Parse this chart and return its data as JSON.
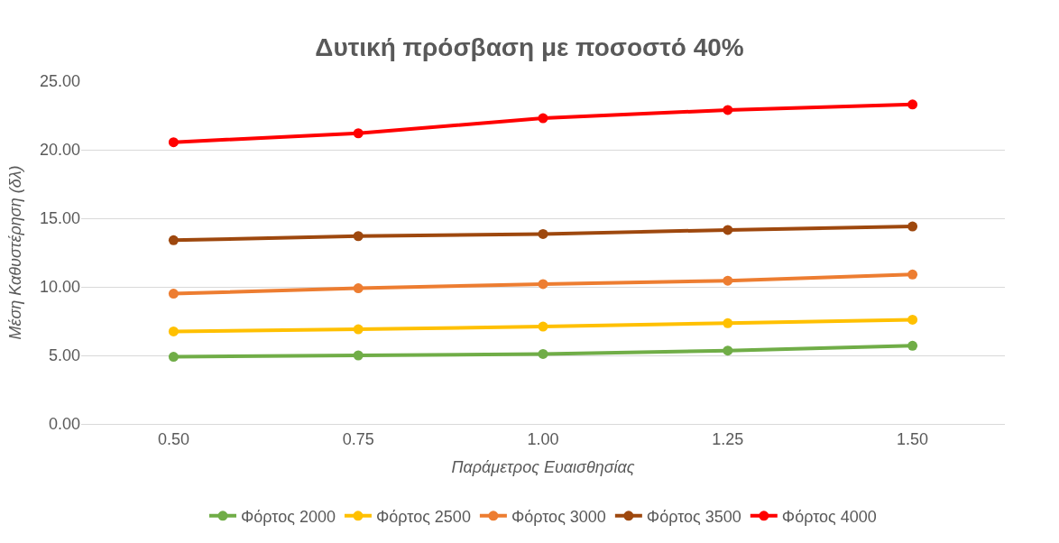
{
  "chart_data": {
    "type": "line",
    "title": "Δυτική πρόσβαση με ποσοστό 40%",
    "xlabel": "Παράμετρος Ευαισθησίας",
    "ylabel": "Μέση Καθυστέρηση (δλ)",
    "categories": [
      "0.50",
      "0.75",
      "1.00",
      "1.25",
      "1.50"
    ],
    "series": [
      {
        "name": "Φόρτος 2000",
        "color": "#70ad47",
        "values": [
          4.9,
          5.0,
          5.1,
          5.35,
          5.7
        ]
      },
      {
        "name": "Φόρτος 2500",
        "color": "#ffc000",
        "values": [
          6.75,
          6.9,
          7.1,
          7.35,
          7.6
        ]
      },
      {
        "name": "Φόρτος 3000",
        "color": "#ed7d31",
        "values": [
          9.5,
          9.9,
          10.2,
          10.45,
          10.9
        ]
      },
      {
        "name": "Φόρτος 3500",
        "color": "#9e480e",
        "values": [
          13.4,
          13.7,
          13.85,
          14.15,
          14.4
        ]
      },
      {
        "name": "Φόρτος 4000",
        "color": "#ff0000",
        "values": [
          20.55,
          21.2,
          22.3,
          22.9,
          23.3
        ]
      }
    ],
    "ylim": [
      0,
      25
    ],
    "yticks": [
      {
        "value": 0,
        "label": "0.00"
      },
      {
        "value": 5,
        "label": "5.00"
      },
      {
        "value": 10,
        "label": "10.00"
      },
      {
        "value": 15,
        "label": "15.00"
      },
      {
        "value": 20,
        "label": "20.00"
      },
      {
        "value": 25,
        "label": "25.00"
      }
    ],
    "grid": "y",
    "legend": "bottom",
    "marker": "circle",
    "line_style": "solid"
  }
}
